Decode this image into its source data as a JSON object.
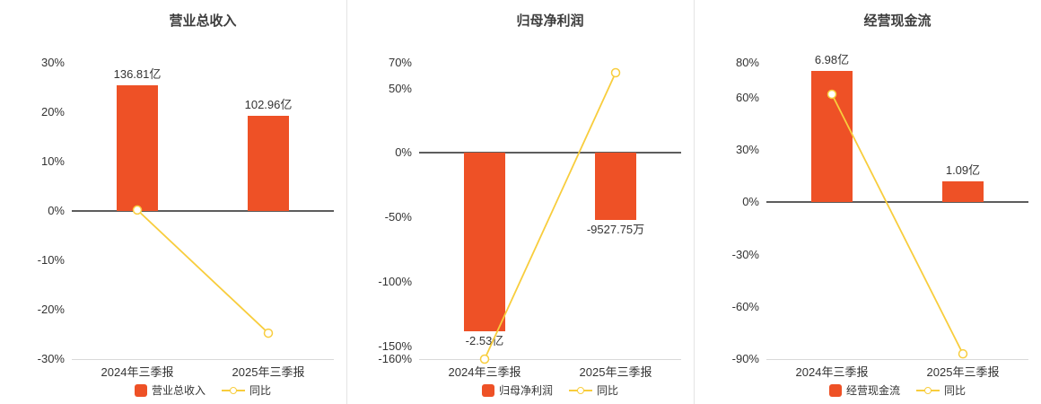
{
  "colors": {
    "bar": "#ee5126",
    "line": "#f8cd3d",
    "zero_line": "#5d5d5d",
    "axis_line": "#d9d9d9",
    "text": "#333333"
  },
  "chart_data": [
    {
      "type": "bar",
      "title": "营业总收入",
      "categories": [
        "2024年三季报",
        "2025年三季报"
      ],
      "bar_series": {
        "name": "营业总收入",
        "unit": "亿",
        "values": [
          136.81,
          102.96
        ],
        "value_labels": [
          "136.81亿",
          "102.96亿"
        ]
      },
      "line_series": {
        "name": "同比",
        "unit": "%",
        "values_pct": [
          0.2,
          -24.74
        ]
      },
      "yticks_pct": [
        30,
        20,
        10,
        0,
        -10,
        -20,
        -30
      ],
      "ylim_pct": [
        -30,
        30
      ],
      "bar_heights_pct": [
        25.5,
        19.19
      ],
      "grid": false,
      "legend_position": "bottom"
    },
    {
      "type": "bar",
      "title": "归母净利润",
      "categories": [
        "2024年三季报",
        "2025年三季报"
      ],
      "bar_series": {
        "name": "归母净利润",
        "unit": "亿",
        "values": [
          -2.53,
          -0.952775
        ],
        "value_labels": [
          "-2.53亿",
          "-9527.75万"
        ]
      },
      "line_series": {
        "name": "同比",
        "unit": "%",
        "values_pct": [
          -160,
          62.34
        ]
      },
      "yticks_pct": [
        70,
        50,
        0,
        -50,
        -100,
        -150,
        -160
      ],
      "ylim_pct": [
        -160,
        70
      ],
      "bar_heights_pct": [
        -138.5,
        -52.2
      ],
      "grid": false,
      "legend_position": "bottom"
    },
    {
      "type": "bar",
      "title": "经营现金流",
      "categories": [
        "2024年三季报",
        "2025年三季报"
      ],
      "bar_series": {
        "name": "经营现金流",
        "unit": "亿",
        "values": [
          6.98,
          1.09
        ],
        "value_labels": [
          "6.98亿",
          "1.09亿"
        ]
      },
      "line_series": {
        "name": "同比",
        "unit": "%",
        "values_pct": [
          62,
          -87
        ]
      },
      "yticks_pct": [
        80,
        60,
        30,
        0,
        -30,
        -60,
        -90
      ],
      "ylim_pct": [
        -90,
        80
      ],
      "bar_heights_pct": [
        75.6,
        11.8
      ],
      "grid": false,
      "legend_position": "bottom"
    }
  ]
}
